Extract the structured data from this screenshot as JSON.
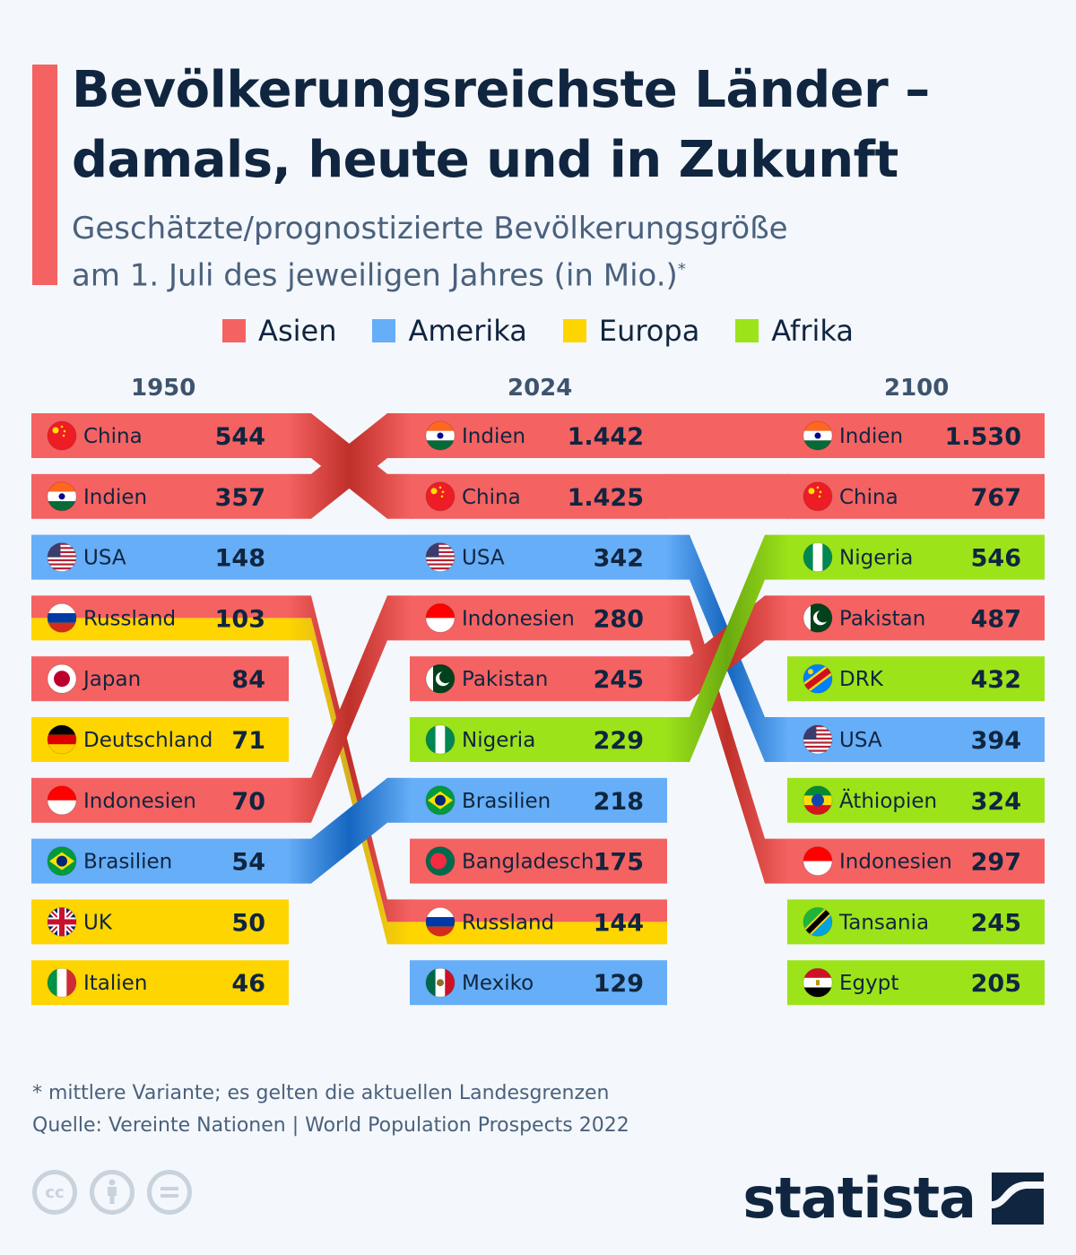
{
  "header": {
    "title_line1": "Bevölkerungsreichste Länder –",
    "title_line2": "damals, heute und in Zukunft",
    "subtitle_line1": "Geschätzte/prognostizierte Bevölkerungsgröße",
    "subtitle_line2": "am 1. Juli des jeweiligen Jahres (in Mio.)",
    "subtitle_mark": "*"
  },
  "footer": {
    "note": "* mittlere Variante; es gelten die aktuellen Landesgrenzen",
    "source": "Quelle: Vereinte Nationen | World Population Prospects 2022",
    "brand": "statista",
    "license_icons": [
      "cc-icon",
      "by-icon",
      "nd-icon"
    ]
  },
  "chart_data": {
    "type": "table",
    "subtype": "bump-ranking",
    "title": "Bevölkerungsreichste Länder – damals, heute und in Zukunft",
    "unit": "Mio.",
    "legend": [
      {
        "name": "Asien",
        "color": "#f56262"
      },
      {
        "name": "Amerika",
        "color": "#66aef8"
      },
      {
        "name": "Europa",
        "color": "#ffd500"
      },
      {
        "name": "Afrika",
        "color": "#9de31a"
      }
    ],
    "legend_placement": "top-center",
    "columns": [
      {
        "year": "1950",
        "rows": [
          {
            "country": "China",
            "value": 544,
            "label": "544",
            "region": "Asien",
            "flag": "china-flag"
          },
          {
            "country": "Indien",
            "value": 357,
            "label": "357",
            "region": "Asien",
            "flag": "india-flag"
          },
          {
            "country": "USA",
            "value": 148,
            "label": "148",
            "region": "Amerika",
            "flag": "usa-flag"
          },
          {
            "country": "Russland",
            "value": 103,
            "label": "103",
            "region": "Asien/Europa",
            "flag": "russia-flag"
          },
          {
            "country": "Japan",
            "value": 84,
            "label": "84",
            "region": "Asien",
            "flag": "japan-flag"
          },
          {
            "country": "Deutschland",
            "value": 71,
            "label": "71",
            "region": "Europa",
            "flag": "germany-flag"
          },
          {
            "country": "Indonesien",
            "value": 70,
            "label": "70",
            "region": "Asien",
            "flag": "indonesia-flag"
          },
          {
            "country": "Brasilien",
            "value": 54,
            "label": "54",
            "region": "Amerika",
            "flag": "brazil-flag"
          },
          {
            "country": "UK",
            "value": 50,
            "label": "50",
            "region": "Europa",
            "flag": "uk-flag"
          },
          {
            "country": "Italien",
            "value": 46,
            "label": "46",
            "region": "Europa",
            "flag": "italy-flag"
          }
        ]
      },
      {
        "year": "2024",
        "rows": [
          {
            "country": "Indien",
            "value": 1442,
            "label": "1.442",
            "region": "Asien",
            "flag": "india-flag"
          },
          {
            "country": "China",
            "value": 1425,
            "label": "1.425",
            "region": "Asien",
            "flag": "china-flag"
          },
          {
            "country": "USA",
            "value": 342,
            "label": "342",
            "region": "Amerika",
            "flag": "usa-flag"
          },
          {
            "country": "Indonesien",
            "value": 280,
            "label": "280",
            "region": "Asien",
            "flag": "indonesia-flag"
          },
          {
            "country": "Pakistan",
            "value": 245,
            "label": "245",
            "region": "Asien",
            "flag": "pakistan-flag"
          },
          {
            "country": "Nigeria",
            "value": 229,
            "label": "229",
            "region": "Afrika",
            "flag": "nigeria-flag"
          },
          {
            "country": "Brasilien",
            "value": 218,
            "label": "218",
            "region": "Amerika",
            "flag": "brazil-flag"
          },
          {
            "country": "Bangladesch",
            "value": 175,
            "label": "175",
            "region": "Asien",
            "flag": "bangladesh-flag"
          },
          {
            "country": "Russland",
            "value": 144,
            "label": "144",
            "region": "Asien/Europa",
            "flag": "russia-flag"
          },
          {
            "country": "Mexiko",
            "value": 129,
            "label": "129",
            "region": "Amerika",
            "flag": "mexico-flag"
          }
        ]
      },
      {
        "year": "2100",
        "rows": [
          {
            "country": "Indien",
            "value": 1530,
            "label": "1.530",
            "region": "Asien",
            "flag": "india-flag"
          },
          {
            "country": "China",
            "value": 767,
            "label": "767",
            "region": "Asien",
            "flag": "china-flag"
          },
          {
            "country": "Nigeria",
            "value": 546,
            "label": "546",
            "region": "Afrika",
            "flag": "nigeria-flag"
          },
          {
            "country": "Pakistan",
            "value": 487,
            "label": "487",
            "region": "Asien",
            "flag": "pakistan-flag"
          },
          {
            "country": "DRK",
            "value": 432,
            "label": "432",
            "region": "Afrika",
            "flag": "drc-flag"
          },
          {
            "country": "USA",
            "value": 394,
            "label": "394",
            "region": "Amerika",
            "flag": "usa-flag"
          },
          {
            "country": "Äthiopien",
            "value": 324,
            "label": "324",
            "region": "Afrika",
            "flag": "ethiopia-flag"
          },
          {
            "country": "Indonesien",
            "value": 297,
            "label": "297",
            "region": "Asien",
            "flag": "indonesia-flag"
          },
          {
            "country": "Tansania",
            "value": 245,
            "label": "245",
            "region": "Afrika",
            "flag": "tanzania-flag"
          },
          {
            "country": "Egypt",
            "value": 205,
            "label": "205",
            "region": "Afrika",
            "flag": "egypt-flag"
          }
        ]
      }
    ]
  }
}
